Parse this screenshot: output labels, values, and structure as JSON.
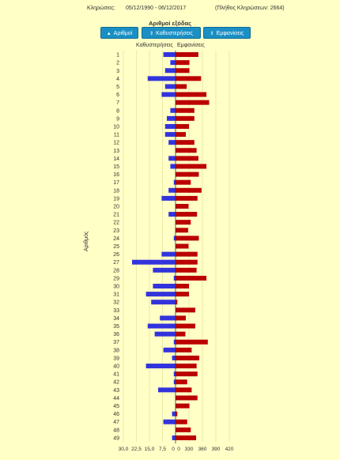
{
  "header": {
    "draws_label": "Κληρώσεις:",
    "date_range": "05/12/1990 - 06/12/2017",
    "total_draws": "(Πλήθος Κληρώσεων: 2664)"
  },
  "subtitle": "Αριθμοί εξόδας",
  "buttons": {
    "numbers": {
      "icon": "▲",
      "label": "Αριθμοί"
    },
    "delays": {
      "icon": "⇕",
      "label": "Καθυστερήσεις"
    },
    "frequencies": {
      "icon": "⇕",
      "label": "Εμφανίσεις"
    }
  },
  "columns": {
    "delays": "Καθυστερήσεις",
    "frequencies": "Εμφανίσεις"
  },
  "colors": {
    "delay": "#3333dd",
    "frequency": "#bb0000",
    "grid": "#dddd99",
    "axis": "#333333"
  },
  "chart_data": {
    "type": "bar",
    "orientation": "horizontal",
    "ylabel": "Αριθμός",
    "categories": [
      "1",
      "2",
      "3",
      "4",
      "5",
      "6",
      "7",
      "8",
      "9",
      "10",
      "11",
      "12",
      "13",
      "14",
      "15",
      "16",
      "17",
      "18",
      "19",
      "20",
      "21",
      "22",
      "23",
      "24",
      "25",
      "26",
      "27",
      "28",
      "29",
      "30",
      "31",
      "32",
      "33",
      "34",
      "35",
      "36",
      "37",
      "38",
      "39",
      "40",
      "41",
      "42",
      "43",
      "44",
      "45",
      "46",
      "47",
      "48",
      "49"
    ],
    "left_axis": {
      "ticks": [
        "30,0",
        "22,5",
        "15,0",
        "7,5",
        "0"
      ],
      "range": [
        0,
        30
      ]
    },
    "right_axis": {
      "ticks": [
        "0",
        "330",
        "360",
        "390",
        "420"
      ]
    },
    "series": [
      {
        "name": "Καθυστερήσεις",
        "side": "left",
        "values": [
          7,
          3,
          6,
          16,
          6,
          8,
          0,
          3,
          5,
          6,
          6,
          4,
          0,
          4,
          3,
          0,
          1,
          4,
          8,
          0,
          4,
          0,
          0,
          1,
          0,
          8,
          25,
          13,
          1,
          13,
          17,
          14,
          0,
          9,
          16,
          12,
          1,
          7,
          2,
          17,
          1,
          1,
          10,
          0,
          0,
          2,
          7,
          0,
          2
        ]
      },
      {
        "name": "Εμφανίσεις",
        "side": "right",
        "values": [
          351,
          331,
          331,
          357,
          325,
          369,
          375,
          342,
          342,
          330,
          323,
          342,
          347,
          351,
          369,
          352,
          334,
          358,
          349,
          329,
          348,
          334,
          328,
          352,
          329,
          349,
          349,
          347,
          369,
          330,
          330,
          304,
          344,
          323,
          344,
          322,
          372,
          336,
          353,
          347,
          349,
          326,
          336,
          349,
          331,
          304,
          326,
          334,
          346
        ]
      }
    ]
  }
}
